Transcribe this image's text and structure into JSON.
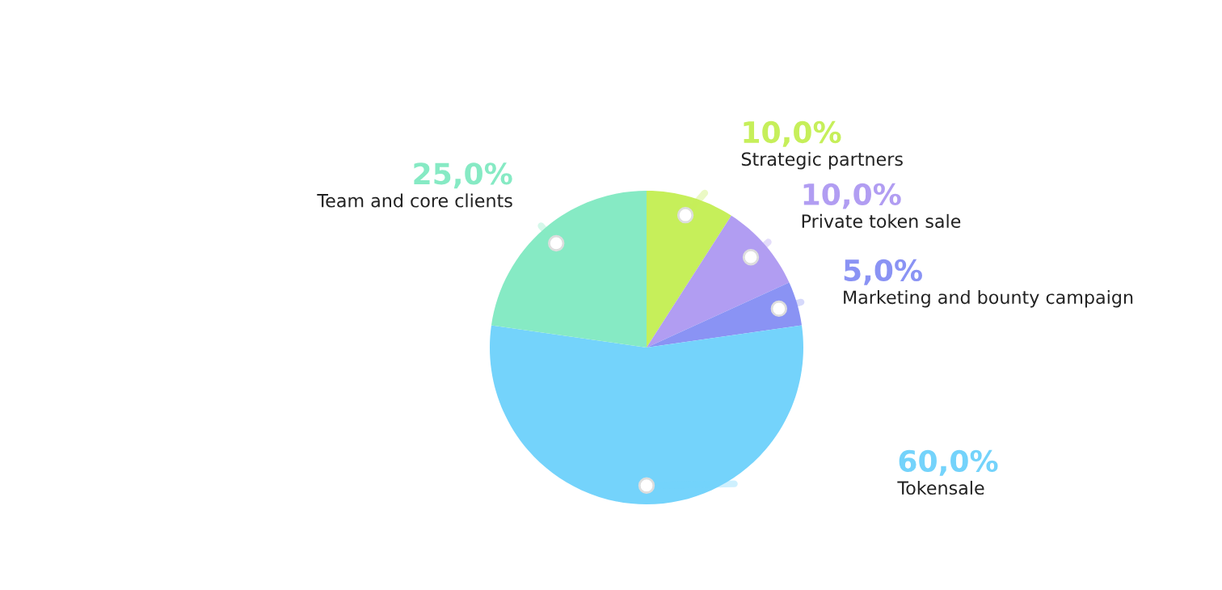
{
  "chart_data": {
    "type": "pie",
    "categories": [
      "Strategic partners",
      "Private token sale",
      "Marketing and bounty campaign",
      "Tokensale",
      "Team and core clients"
    ],
    "values": [
      10,
      10,
      5,
      60,
      25
    ],
    "value_labels": [
      "10,0%",
      "10,0%",
      "5,0%",
      "60,0%",
      "25,0%"
    ],
    "colors": [
      "#c6ef5a",
      "#b19df2",
      "#8a93f4",
      "#74d3fb",
      "#86eac4"
    ]
  }
}
